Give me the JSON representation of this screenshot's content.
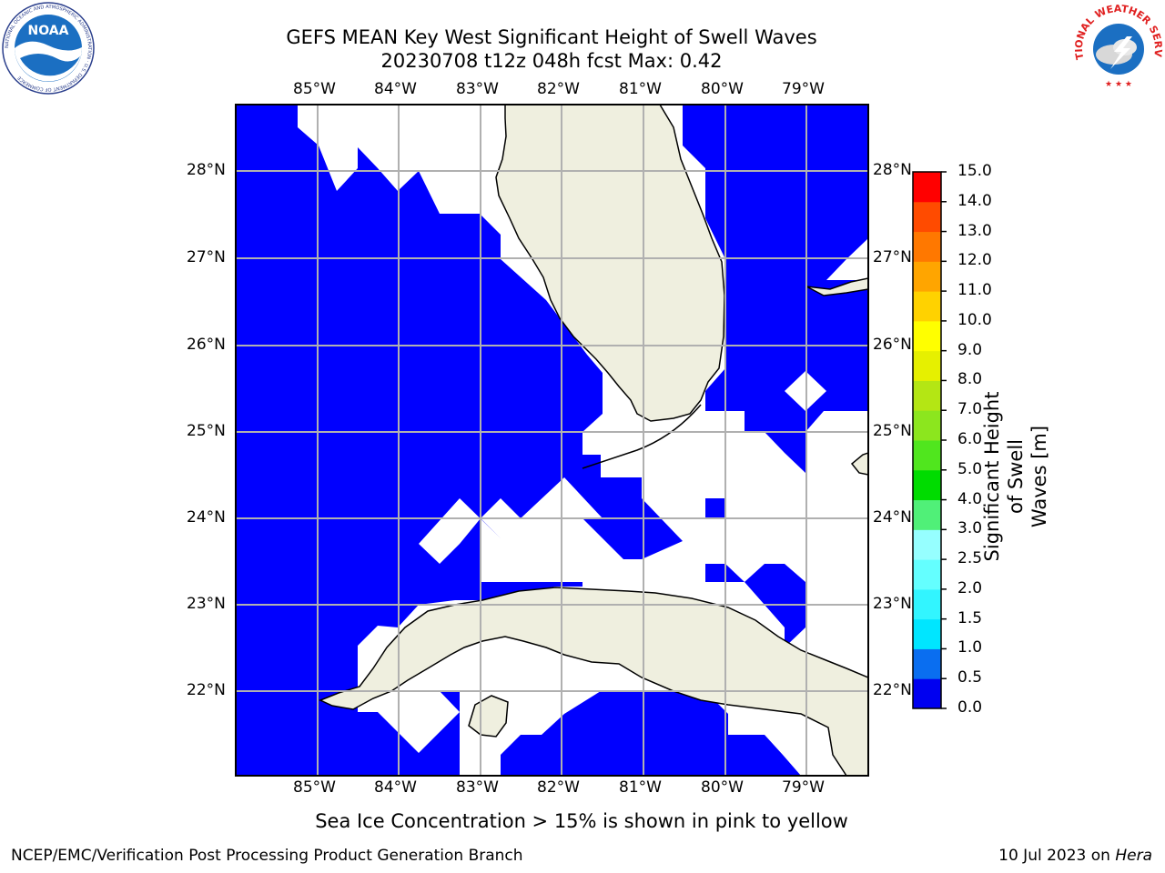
{
  "title_line1": "GEFS MEAN Key West Significant Height of Swell Waves",
  "title_line2": "20230708 t12z 048h fcst   Max: 0.42",
  "lon_labels": [
    "85°W",
    "84°W",
    "83°W",
    "82°W",
    "81°W",
    "80°W",
    "79°W"
  ],
  "lat_labels": [
    "28°N",
    "27°N",
    "26°N",
    "25°N",
    "24°N",
    "23°N",
    "22°N"
  ],
  "colorbar": {
    "label_line1": "Significant Height of Swell",
    "label_line2": "Waves [m]",
    "ticks": [
      "0.0",
      "0.5",
      "1.0",
      "1.5",
      "2.0",
      "2.5",
      "3.0",
      "4.0",
      "5.0",
      "6.0",
      "7.0",
      "8.0",
      "9.0",
      "10.0",
      "11.0",
      "12.0",
      "13.0",
      "14.0",
      "15.0"
    ],
    "colors": [
      "#0000f0",
      "#0a6ef0",
      "#00e6ff",
      "#32f5ff",
      "#64ffff",
      "#96ffff",
      "#50f078",
      "#00dc00",
      "#50e61e",
      "#8ce61e",
      "#b4e614",
      "#e6f000",
      "#ffff00",
      "#ffd200",
      "#ffa500",
      "#ff7800",
      "#ff4b00",
      "#ff0000"
    ]
  },
  "note": "Sea Ice Concentration > 15% is shown in pink to yellow",
  "footer_left": "NCEP/EMC/Verification Post Processing Product Generation Branch",
  "footer_right_prefix": "10 Jul 2023 on ",
  "footer_right_host": "Hera",
  "logos": {
    "noaa": "NOAA",
    "noaa_ring": "NATIONAL OCEANIC AND ATMOSPHERIC ADMINISTRATION · U.S. DEPARTMENT OF COMMERCE",
    "nws_ring": "NATIONAL WEATHER SERVICE"
  },
  "colors": {
    "ocean_wave": "#0000ff",
    "land": "#efefdf",
    "grid": "#b0b0b0"
  }
}
